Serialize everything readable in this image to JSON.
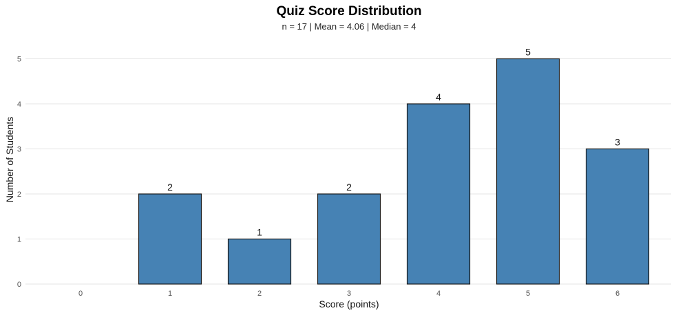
{
  "chart_data": {
    "type": "bar",
    "title": "Quiz Score Distribution",
    "subtitle": "n = 17 | Mean = 4.06 | Median = 4",
    "xlabel": "Score (points)",
    "ylabel": "Number of Students",
    "categories": [
      "0",
      "1",
      "2",
      "3",
      "4",
      "5",
      "6"
    ],
    "values": [
      0,
      2,
      1,
      2,
      4,
      5,
      3
    ],
    "data_labels": [
      "",
      "2",
      "1",
      "2",
      "4",
      "5",
      "3"
    ],
    "yticks": [
      0,
      1,
      2,
      3,
      4,
      5
    ],
    "ylim": [
      0,
      5.5
    ],
    "grid": true,
    "legend": "none",
    "bar_color": "#4682B4",
    "bar_edge_color": "#1a1a1a"
  }
}
